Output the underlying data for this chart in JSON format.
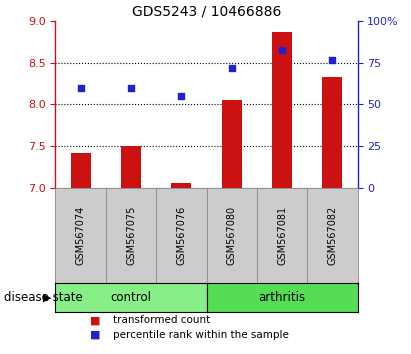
{
  "title": "GDS5243 / 10466886",
  "samples": [
    "GSM567074",
    "GSM567075",
    "GSM567076",
    "GSM567080",
    "GSM567081",
    "GSM567082"
  ],
  "groups": [
    "control",
    "control",
    "control",
    "arthritis",
    "arthritis",
    "arthritis"
  ],
  "transformed_count": [
    7.42,
    7.5,
    7.05,
    8.05,
    8.87,
    8.33
  ],
  "percentile_rank": [
    60,
    60,
    55,
    72,
    83,
    77
  ],
  "ylim_left": [
    7.0,
    9.0
  ],
  "ylim_right": [
    0,
    100
  ],
  "yticks_left": [
    7.0,
    7.5,
    8.0,
    8.5,
    9.0
  ],
  "yticks_right": [
    0,
    25,
    50,
    75,
    100
  ],
  "bar_color": "#cc1111",
  "dot_color": "#2222cc",
  "bar_bottom": 7.0,
  "control_color": "#88ee88",
  "arthritis_color": "#55dd55",
  "label_bg_color": "#cccccc",
  "legend_bar_label": "transformed count",
  "legend_dot_label": "percentile rank within the sample",
  "group_label": "disease state",
  "bar_width": 0.4,
  "title_fontsize": 10,
  "tick_fontsize": 8,
  "sample_fontsize": 7,
  "group_fontsize": 8.5,
  "legend_fontsize": 7.5
}
